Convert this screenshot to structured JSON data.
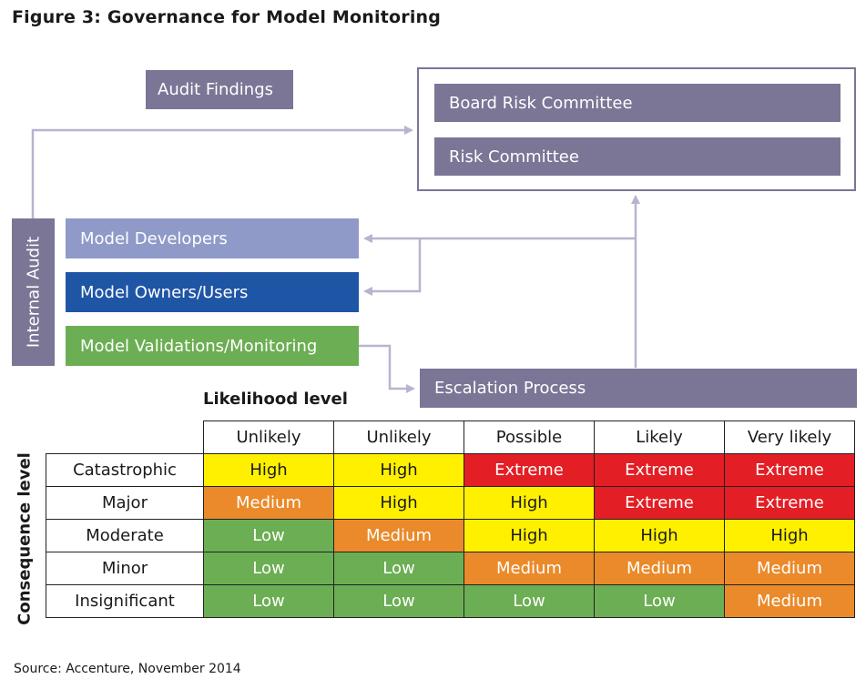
{
  "title": "Figure 3: Governance for Model Monitoring",
  "boxes": {
    "audit_findings": "Audit Findings",
    "board_risk_committee": "Board Risk Committee",
    "risk_committee": "Risk Committee",
    "internal_audit": "Internal Audit",
    "model_developers": "Model Developers",
    "model_owners": "Model Owners/Users",
    "model_validations": "Model Validations/Monitoring",
    "escalation_process": "Escalation Process"
  },
  "matrix": {
    "likelihood_label": "Likelihood level",
    "consequence_label": "Consequence level",
    "columns": [
      "Unlikely",
      "Unlikely",
      "Possible",
      "Likely",
      "Very likely"
    ],
    "rows": [
      {
        "label": "Catastrophic",
        "cells": [
          "High",
          "High",
          "Extreme",
          "Extreme",
          "Extreme"
        ]
      },
      {
        "label": "Major",
        "cells": [
          "Medium",
          "High",
          "High",
          "Extreme",
          "Extreme"
        ]
      },
      {
        "label": "Moderate",
        "cells": [
          "Low",
          "Medium",
          "High",
          "High",
          "High"
        ]
      },
      {
        "label": "Minor",
        "cells": [
          "Low",
          "Low",
          "Medium",
          "Medium",
          "Medium"
        ]
      },
      {
        "label": "Insignificant",
        "cells": [
          "Low",
          "Low",
          "Low",
          "Low",
          "Medium"
        ]
      }
    ],
    "level_colors": {
      "Low": "#6cae53",
      "Medium": "#ea8a2a",
      "High": "#fff000",
      "Extreme": "#e31e24"
    },
    "level_text_colors": {
      "Low": "#ffffff",
      "Medium": "#ffffff",
      "High": "#1a1a1a",
      "Extreme": "#ffffff"
    }
  },
  "source": "Source: Accenture, November 2014",
  "colors": {
    "purple": "#7b7596",
    "lilac": "#8f9ac8",
    "navy": "#1f55a5",
    "green": "#6cae53",
    "connector": "#b9b3cf"
  }
}
